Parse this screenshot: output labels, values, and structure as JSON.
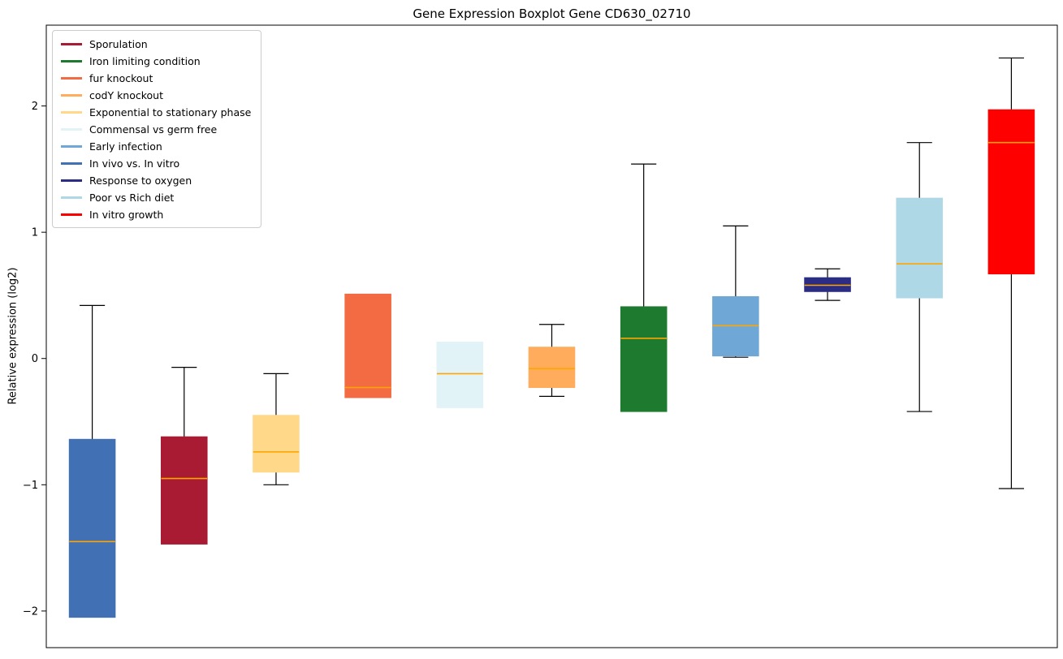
{
  "chart_data": {
    "type": "boxplot",
    "title": "Gene Expression Boxplot Gene CD630_02710",
    "ylabel": "Relative expression (log2)",
    "xlabel": "",
    "ylim": [
      -2.29,
      2.64
    ],
    "yticks": [
      -2,
      -1,
      0,
      1,
      2
    ],
    "grid": false,
    "legend_position": "upper left",
    "median_color": "#FFA500",
    "whisker_color": "#000000",
    "boxes": [
      {
        "name": "In vivo vs. In vitro",
        "color": "#4170b4",
        "whislo": -2.05,
        "q1": -2.05,
        "med": -1.45,
        "q3": -0.64,
        "whishi": 0.42
      },
      {
        "name": "Sporulation",
        "color": "#a91b33",
        "whislo": -1.47,
        "q1": -1.47,
        "med": -0.95,
        "q3": -0.62,
        "whishi": -0.07
      },
      {
        "name": "Exponential to stationary phase",
        "color": "#ffd88a",
        "whislo": -1.0,
        "q1": -0.9,
        "med": -0.74,
        "q3": -0.45,
        "whishi": -0.12
      },
      {
        "name": "fur knockout",
        "color": "#f26b43",
        "whislo": -0.31,
        "q1": -0.31,
        "med": -0.23,
        "q3": 0.51,
        "whishi": 0.51
      },
      {
        "name": "Commensal vs germ free",
        "color": "#e2f3f8",
        "whislo": -0.39,
        "q1": -0.39,
        "med": -0.12,
        "q3": 0.13,
        "whishi": 0.13
      },
      {
        "name": "codY knockout",
        "color": "#ffad5c",
        "whislo": -0.3,
        "q1": -0.23,
        "med": -0.08,
        "q3": 0.09,
        "whishi": 0.27
      },
      {
        "name": "Iron limiting condition",
        "color": "#1e7a2e",
        "whislo": -0.42,
        "q1": -0.42,
        "med": 0.16,
        "q3": 0.41,
        "whishi": 1.54
      },
      {
        "name": "Early infection",
        "color": "#6fa8d6",
        "whislo": 0.01,
        "q1": 0.02,
        "med": 0.26,
        "q3": 0.49,
        "whishi": 1.05
      },
      {
        "name": "Response to oxygen",
        "color": "#2b2d84",
        "whislo": 0.46,
        "q1": 0.53,
        "med": 0.58,
        "q3": 0.64,
        "whishi": 0.71
      },
      {
        "name": "Poor vs Rich diet",
        "color": "#aed8e6",
        "whislo": -0.42,
        "q1": 0.48,
        "med": 0.75,
        "q3": 1.27,
        "whishi": 1.71
      },
      {
        "name": "In vitro growth",
        "color": "#ff0000",
        "whislo": -1.03,
        "q1": 0.67,
        "med": 1.71,
        "q3": 1.97,
        "whishi": 2.38
      }
    ],
    "legend": [
      {
        "label": "Sporulation",
        "color": "#a91b33"
      },
      {
        "label": "Iron limiting condition",
        "color": "#1e7a2e"
      },
      {
        "label": "fur knockout",
        "color": "#f26b43"
      },
      {
        "label": "codY knockout",
        "color": "#ffad5c"
      },
      {
        "label": "Exponential to stationary phase",
        "color": "#ffd88a"
      },
      {
        "label": "Commensal vs germ free",
        "color": "#e2f3f8"
      },
      {
        "label": "Early infection",
        "color": "#6fa8d6"
      },
      {
        "label": "In vivo vs. In vitro",
        "color": "#4170b4"
      },
      {
        "label": "Response to oxygen",
        "color": "#2b2d84"
      },
      {
        "label": "Poor vs Rich diet",
        "color": "#aed8e6"
      },
      {
        "label": "In vitro growth",
        "color": "#ff0000"
      }
    ]
  }
}
